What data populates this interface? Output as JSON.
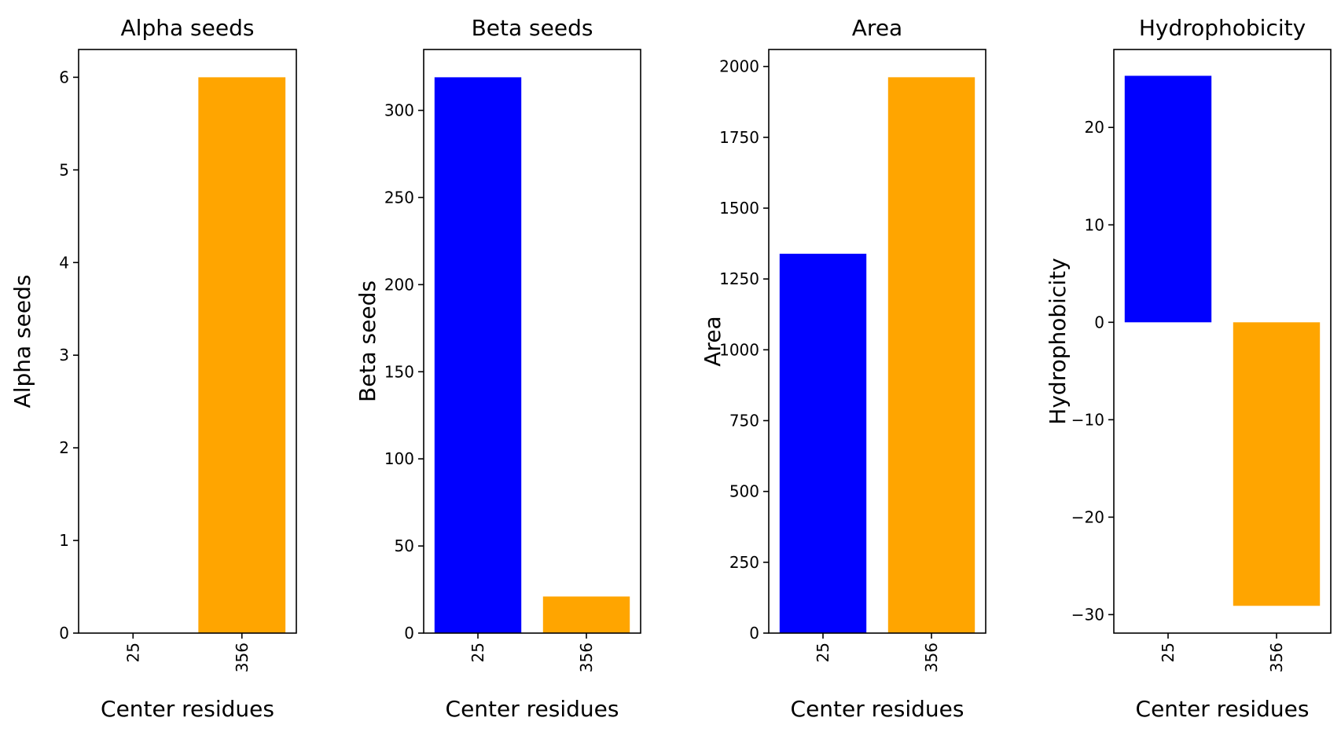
{
  "chart_data": [
    {
      "type": "bar",
      "title": "Alpha seeds",
      "xlabel": "Center residues",
      "ylabel": "Alpha seeds",
      "categories": [
        "25",
        "356"
      ],
      "values": [
        0,
        6
      ],
      "colors": [
        "#0000ff",
        "#ffa500"
      ],
      "ylim": [
        0,
        6.3
      ],
      "yticks": [
        0,
        1,
        2,
        3,
        4,
        5,
        6
      ],
      "ytick_labels": [
        "0",
        "1",
        "2",
        "3",
        "4",
        "5",
        "6"
      ]
    },
    {
      "type": "bar",
      "title": "Beta seeds",
      "xlabel": "Center residues",
      "ylabel": "Beta seeds",
      "categories": [
        "25",
        "356"
      ],
      "values": [
        319,
        21
      ],
      "colors": [
        "#0000ff",
        "#ffa500"
      ],
      "ylim": [
        0,
        334.95
      ],
      "yticks": [
        0,
        50,
        100,
        150,
        200,
        250,
        300
      ],
      "ytick_labels": [
        "0",
        "50",
        "100",
        "150",
        "200",
        "250",
        "300"
      ]
    },
    {
      "type": "bar",
      "title": "Area",
      "xlabel": "Center residues",
      "ylabel": "Area",
      "categories": [
        "25",
        "356"
      ],
      "values": [
        1339,
        1962
      ],
      "colors": [
        "#0000ff",
        "#ffa500"
      ],
      "ylim": [
        0,
        2060
      ],
      "yticks": [
        0,
        250,
        500,
        750,
        1000,
        1250,
        1500,
        1750,
        2000
      ],
      "ytick_labels": [
        "0",
        "250",
        "500",
        "750",
        "1000",
        "1250",
        "1500",
        "1750",
        "2000"
      ]
    },
    {
      "type": "bar",
      "title": "Hydrophobicity",
      "xlabel": "Center residues",
      "ylabel": "Hydrophobicity",
      "categories": [
        "25",
        "356"
      ],
      "values": [
        25.3,
        -29.1
      ],
      "colors": [
        "#0000ff",
        "#ffa500"
      ],
      "ylim": [
        -31.9,
        28.0
      ],
      "yticks": [
        -30,
        -20,
        -10,
        0,
        10,
        20
      ],
      "ytick_labels": [
        "−30",
        "−20",
        "−10",
        "0",
        "10",
        "20"
      ]
    }
  ]
}
